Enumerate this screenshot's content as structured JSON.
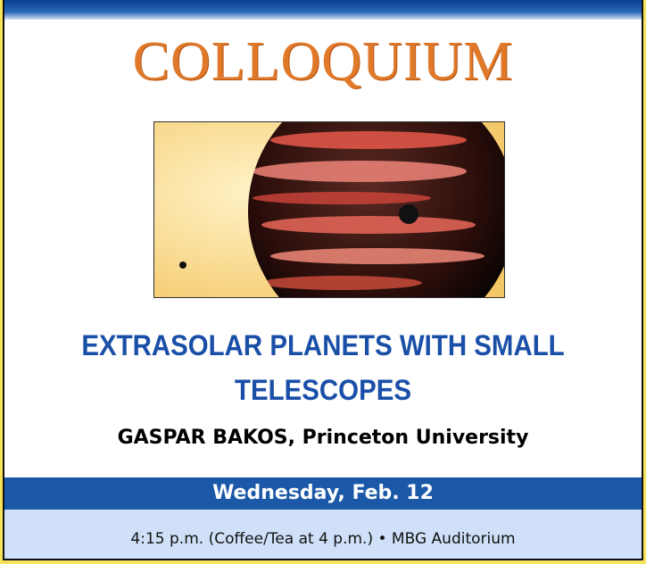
{
  "header": {
    "title": "COLLOQUIUM"
  },
  "talk": {
    "title": "EXTRASOLAR PLANETS WITH SMALL TELESCOPES",
    "speaker": "GASPAR BAKOS, Princeton University"
  },
  "event": {
    "date": "Wednesday, Feb. 12",
    "details": "4:15 p.m. (Coffee/Tea at 4 p.m.) • MBG Auditorium"
  }
}
